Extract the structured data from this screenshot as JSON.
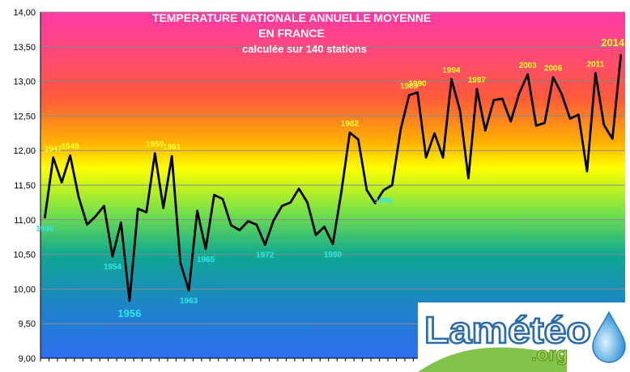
{
  "chart_data": {
    "type": "line",
    "title": [
      "TEMPERATURE NATIONALE ANNUELLE MOYENNE",
      "EN FRANCE",
      "calculée sur 140 stations"
    ],
    "xlabel": "",
    "ylabel": "",
    "ylim": [
      9.0,
      14.0
    ],
    "yticks": [
      "9,00",
      "9,50",
      "10,00",
      "10,50",
      "11,00",
      "11,50",
      "12,00",
      "12,50",
      "13,00",
      "13,50",
      "14,00"
    ],
    "grid": true,
    "series": [
      {
        "x": [
          1946,
          1947,
          1948,
          1949,
          1950,
          1951,
          1952,
          1953,
          1954,
          1955,
          1956,
          1957,
          1958,
          1959,
          1960,
          1961,
          1962,
          1963,
          1964,
          1965,
          1966,
          1967,
          1968,
          1969,
          1970,
          1971,
          1972,
          1973,
          1974,
          1975,
          1976,
          1977,
          1978,
          1979,
          1980,
          1981,
          1982,
          1983,
          1984,
          1985,
          1986,
          1987,
          1988,
          1989,
          1990,
          1991,
          1992,
          1993,
          1994,
          1995,
          1996,
          1997,
          1998,
          1999,
          2000,
          2001,
          2002,
          2003,
          2004,
          2005,
          2006,
          2007,
          2008,
          2009,
          2010,
          2011,
          2012,
          2013,
          2014
        ],
        "values": [
          11.02,
          11.9,
          11.54,
          11.93,
          11.33,
          10.93,
          11.05,
          11.2,
          10.47,
          10.96,
          9.83,
          11.16,
          11.11,
          11.96,
          11.17,
          11.92,
          10.38,
          9.98,
          11.13,
          10.58,
          11.36,
          11.3,
          10.92,
          10.85,
          10.98,
          10.93,
          10.64,
          10.99,
          11.2,
          11.25,
          11.45,
          11.25,
          10.78,
          10.9,
          10.65,
          11.4,
          12.26,
          12.16,
          11.43,
          11.24,
          11.43,
          11.5,
          12.3,
          12.8,
          12.84,
          11.9,
          12.25,
          11.9,
          13.03,
          12.58,
          11.6,
          12.89,
          12.29,
          12.73,
          12.75,
          12.42,
          12.83,
          13.1,
          12.36,
          12.4,
          13.06,
          12.82,
          12.46,
          12.52,
          11.7,
          13.12,
          12.37,
          12.17,
          13.39
        ]
      }
    ],
    "annotations": [
      {
        "year": 1946,
        "text": "1946",
        "color": "#2ee8e8"
      },
      {
        "year": 1947,
        "text": "1947",
        "color": "#ffff33"
      },
      {
        "year": 1949,
        "text": "1949",
        "color": "#ffff33"
      },
      {
        "year": 1954,
        "text": "1954",
        "color": "#2ee8e8"
      },
      {
        "year": 1956,
        "text": "1956",
        "color": "#2ee8e8"
      },
      {
        "year": 1959,
        "text": "1959",
        "color": "#ffff33"
      },
      {
        "year": 1961,
        "text": "1961",
        "color": "#ffff33"
      },
      {
        "year": 1963,
        "text": "1963",
        "color": "#2ee8e8"
      },
      {
        "year": 1965,
        "text": "1965",
        "color": "#2ee8e8"
      },
      {
        "year": 1972,
        "text": "1972",
        "color": "#2ee8e8"
      },
      {
        "year": 1980,
        "text": "1980",
        "color": "#2ee8e8"
      },
      {
        "year": 1982,
        "text": "1982",
        "color": "#ffff33"
      },
      {
        "year": 1986,
        "text": "1986",
        "color": "#2ee8e8"
      },
      {
        "year": 1989,
        "text": "1989",
        "color": "#ffff33"
      },
      {
        "year": 1990,
        "text": "1990",
        "color": "#ffff33"
      },
      {
        "year": 1994,
        "text": "1994",
        "color": "#ffff33"
      },
      {
        "year": 1997,
        "text": "1997",
        "color": "#ffff33"
      },
      {
        "year": 2003,
        "text": "2003",
        "color": "#ffff33"
      },
      {
        "year": 2006,
        "text": "2006",
        "color": "#ffff33"
      },
      {
        "year": 2011,
        "text": "2011",
        "color": "#ffff33"
      },
      {
        "year": 2014,
        "text": "2014",
        "color": "#ffff33"
      }
    ],
    "colors": {
      "line": "#000000",
      "background_gradient": [
        "#ff3aa5",
        "#ff5a3a",
        "#ffff00",
        "#10a891",
        "#1e6be8"
      ]
    }
  },
  "logo": {
    "text": "Lamétéo",
    "subtext": ".org"
  }
}
